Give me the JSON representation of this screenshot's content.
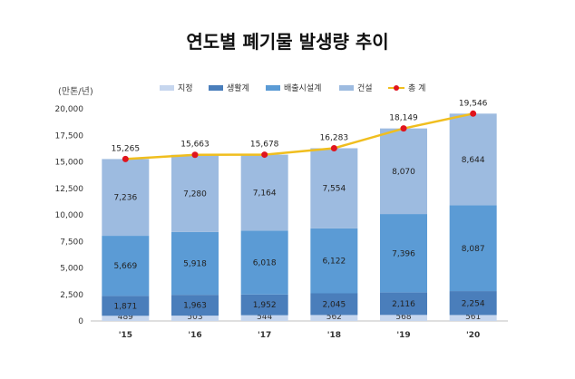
{
  "chart_data": {
    "type": "bar",
    "stacked": true,
    "title": "연도별 폐기물 발생량 추이",
    "unit_label": "(만톤/년)",
    "categories": [
      "'15",
      "'16",
      "'17",
      "'18",
      "'19",
      "'20"
    ],
    "series": [
      {
        "name": "지정",
        "color": "#c6d6ee",
        "values": [
          489,
          503,
          544,
          562,
          568,
          561
        ]
      },
      {
        "name": "생활계",
        "color": "#4a7ebb",
        "values": [
          1871,
          1963,
          1952,
          2045,
          2116,
          2254
        ]
      },
      {
        "name": "배출시설계",
        "color": "#5b9bd5",
        "values": [
          5669,
          5918,
          6018,
          6122,
          7396,
          8087
        ]
      },
      {
        "name": "건설",
        "color": "#9dbbe0",
        "values": [
          7236,
          7280,
          7164,
          7554,
          8070,
          8644
        ]
      }
    ],
    "total": {
      "name": "총 계",
      "line_color": "#f0be1e",
      "marker_color": "#e0141e",
      "values": [
        15265,
        15663,
        15678,
        16283,
        18149,
        19546
      ]
    },
    "ylim": [
      0,
      20000
    ],
    "yticks": [
      "0",
      "2,500",
      "5,000",
      "7,500",
      "10,000",
      "12,500",
      "15,000",
      "17,500",
      "20,000"
    ],
    "ytick_values": [
      0,
      2500,
      5000,
      7500,
      10000,
      12500,
      15000,
      17500,
      20000
    ],
    "legend_position": "top",
    "grid": false
  }
}
